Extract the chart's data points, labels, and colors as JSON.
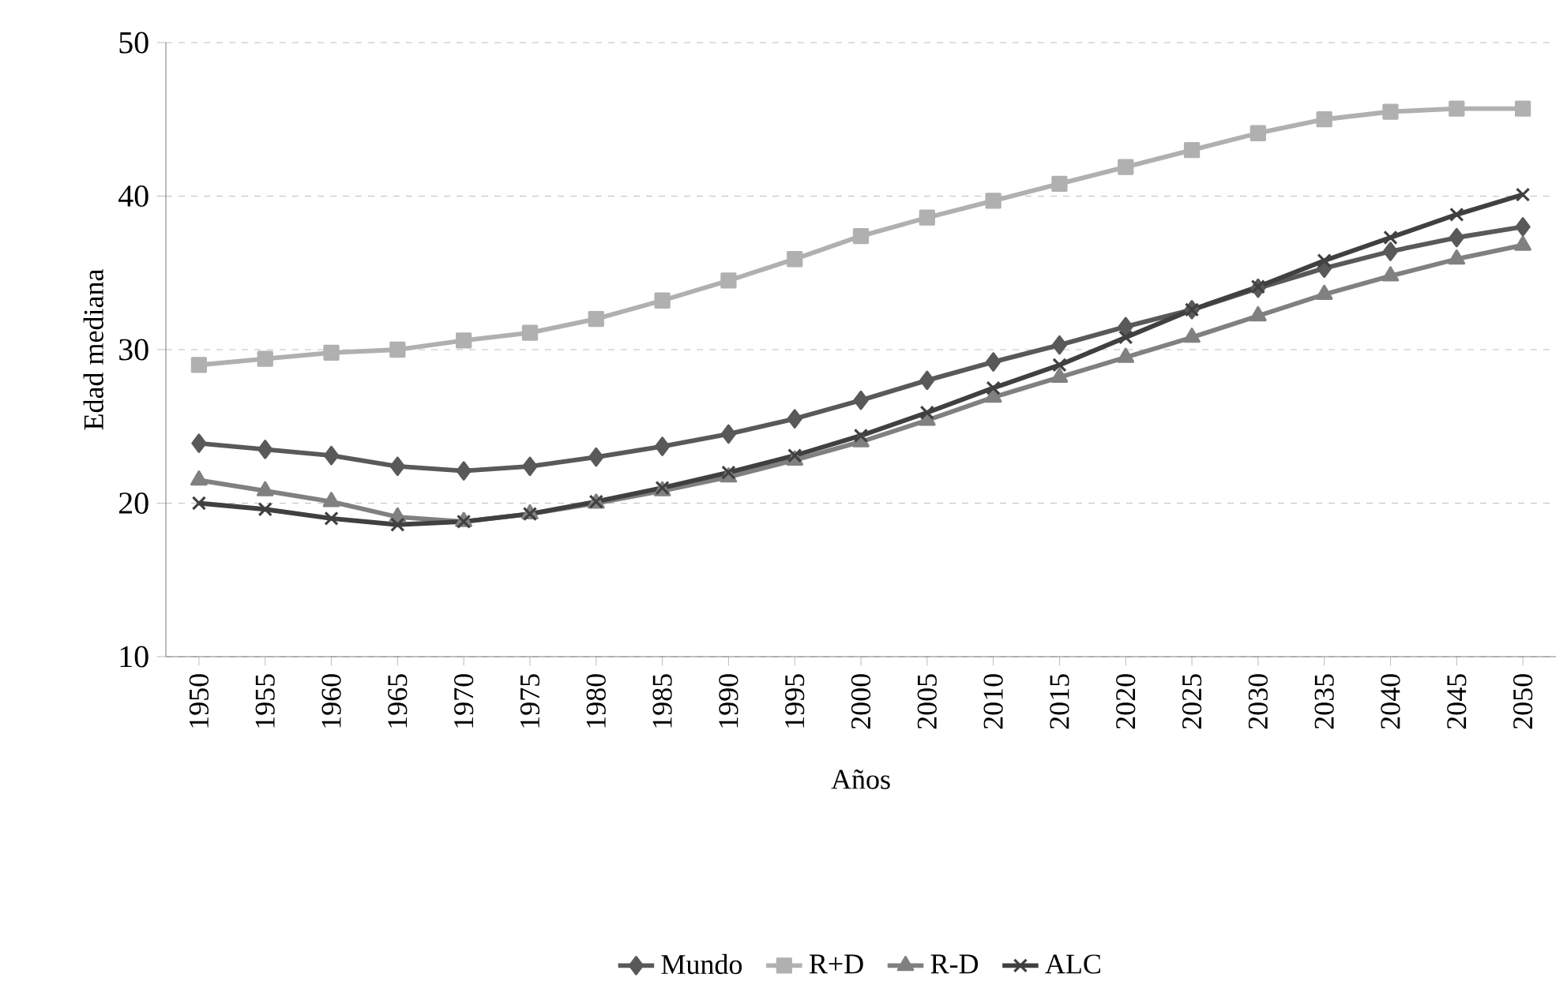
{
  "chart_data": {
    "type": "line",
    "xlabel": "Años",
    "ylabel": "Edad  mediana",
    "categories": [
      "1950",
      "1955",
      "1960",
      "1965",
      "1970",
      "1975",
      "1980",
      "1985",
      "1990",
      "1995",
      "2000",
      "2005",
      "2010",
      "2015",
      "2020",
      "2025",
      "2030",
      "2035",
      "2040",
      "2045",
      "2050"
    ],
    "series": [
      {
        "name": "Mundo",
        "color": "#595959",
        "marker": "diamond",
        "values": [
          23.9,
          23.5,
          23.1,
          22.4,
          22.1,
          22.4,
          23.0,
          23.7,
          24.5,
          25.5,
          26.7,
          28.0,
          29.2,
          30.3,
          31.5,
          32.6,
          34.0,
          35.3,
          36.4,
          37.3,
          38.0
        ]
      },
      {
        "name": "R+D",
        "color": "#b0b0b0",
        "marker": "square",
        "values": [
          29.0,
          29.4,
          29.8,
          30.0,
          30.6,
          31.1,
          32.0,
          33.2,
          34.5,
          35.9,
          37.4,
          38.6,
          39.7,
          40.8,
          41.9,
          43.0,
          44.1,
          45.0,
          45.5,
          45.7,
          45.7
        ]
      },
      {
        "name": "R-D",
        "color": "#808080",
        "marker": "triangle",
        "values": [
          21.5,
          20.8,
          20.1,
          19.1,
          18.8,
          19.3,
          20.0,
          20.8,
          21.7,
          22.8,
          24.0,
          25.4,
          26.9,
          28.2,
          29.5,
          30.8,
          32.2,
          33.6,
          34.8,
          35.9,
          36.8
        ]
      },
      {
        "name": "ALC",
        "color": "#404040",
        "marker": "cross",
        "values": [
          20.0,
          19.6,
          19.0,
          18.6,
          18.8,
          19.3,
          20.1,
          21.0,
          22.0,
          23.1,
          24.4,
          25.9,
          27.5,
          29.0,
          30.8,
          32.6,
          34.1,
          35.8,
          37.3,
          38.8,
          40.1
        ]
      }
    ],
    "ylim": [
      10,
      50
    ],
    "yticks": [
      10,
      20,
      30,
      40,
      50
    ],
    "grid": "y",
    "legend": "bottom",
    "line_style": "solid"
  }
}
